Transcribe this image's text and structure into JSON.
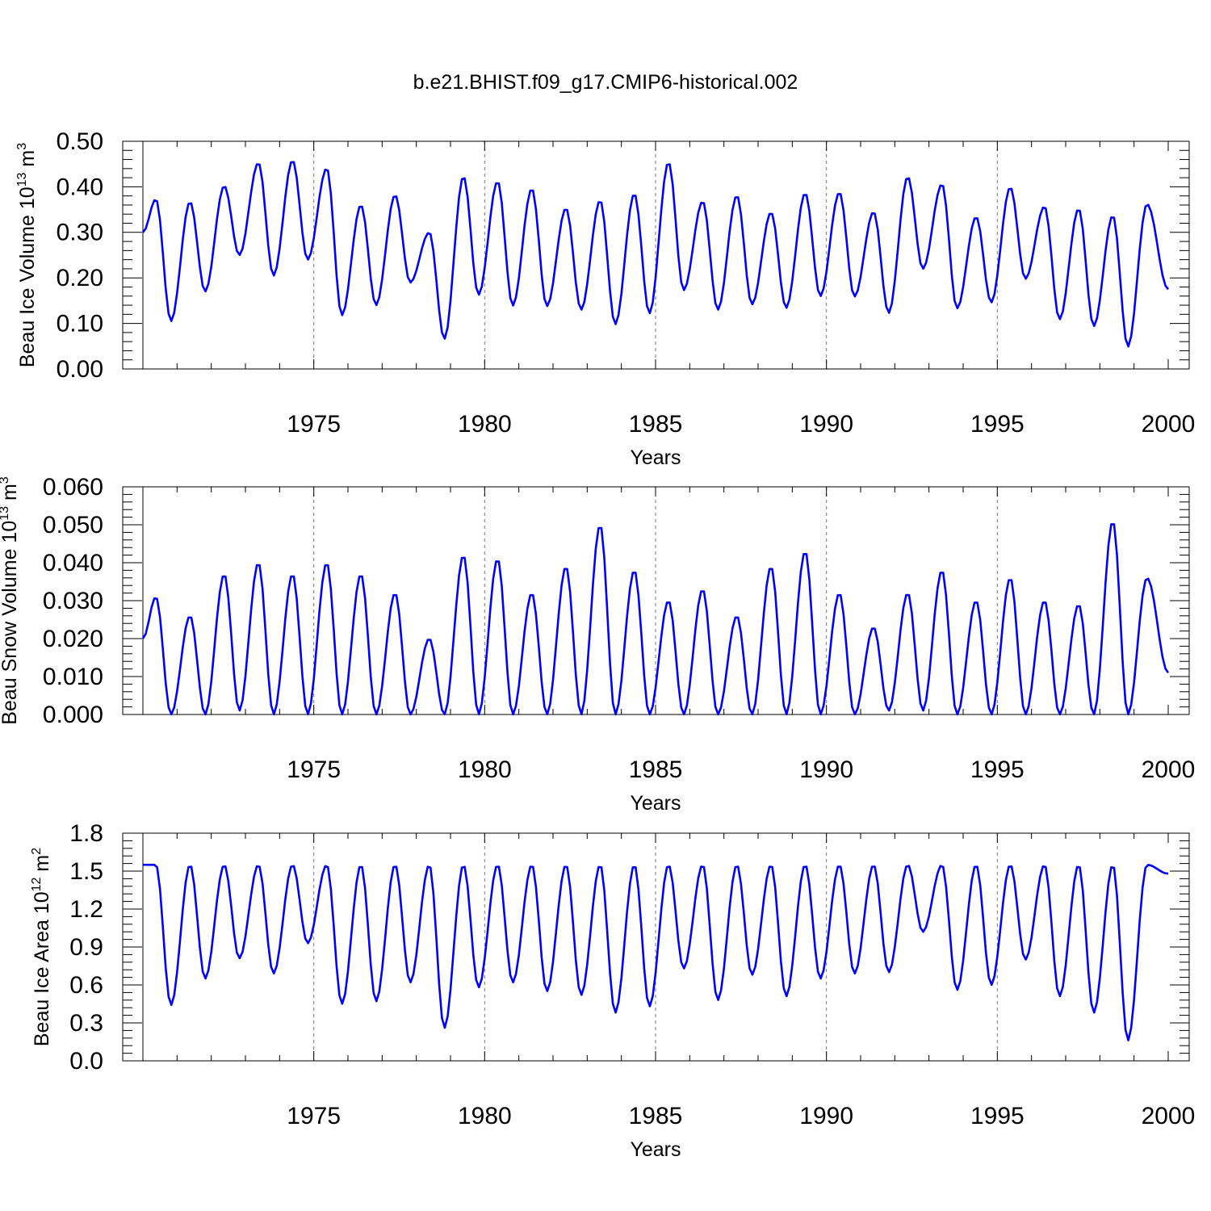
{
  "title": "b.e21.BHIST.f09_g17.CMIP6-historical.002",
  "colors": {
    "series": "#0000ff",
    "axes": "#000000",
    "grid": "#777777"
  },
  "chart_data": [
    {
      "type": "line",
      "ylabel_main": "Beau Ice Volume 10",
      "ylabel_exp": "13",
      "ylabel_unit": " m",
      "ylabel_unit_exp": "3",
      "xlabel": "Years",
      "xlim": [
        1970.0,
        2000.0
      ],
      "ylim": [
        0.0,
        0.5
      ],
      "xticks": [
        "1975",
        "1980",
        "1985",
        "1990",
        "1995",
        "2000"
      ],
      "yticks": [
        "0.00",
        "0.10",
        "0.20",
        "0.30",
        "0.40",
        "0.50"
      ],
      "grid": "dashed vertical lines at 5-year ticks",
      "series": [
        {
          "peaks": [
            0.373,
            0.367,
            0.402,
            0.453,
            0.458,
            0.441,
            0.36,
            0.382,
            0.3,
            0.423,
            0.412,
            0.396,
            0.353,
            0.37,
            0.385,
            0.454,
            0.368,
            0.381,
            0.344,
            0.386,
            0.388,
            0.345,
            0.422,
            0.406,
            0.334,
            0.399,
            0.357,
            0.352,
            0.337,
            0.362
          ],
          "troughs": [
            0.3,
            0.105,
            0.17,
            0.25,
            0.205,
            0.24,
            0.118,
            0.14,
            0.19,
            0.066,
            0.163,
            0.139,
            0.138,
            0.13,
            0.098,
            0.122,
            0.173,
            0.13,
            0.142,
            0.134,
            0.16,
            0.159,
            0.123,
            0.22,
            0.133,
            0.146,
            0.198,
            0.109,
            0.094,
            0.049,
            0.175
          ]
        }
      ]
    },
    {
      "type": "line",
      "ylabel_main": "Beau Snow Volume 10",
      "ylabel_exp": "13",
      "ylabel_unit": " m",
      "ylabel_unit_exp": "3",
      "xlabel": "Years",
      "xlim": [
        1970.0,
        2000.0
      ],
      "ylim": [
        0.0,
        0.06
      ],
      "xticks": [
        "1975",
        "1980",
        "1985",
        "1990",
        "1995",
        "2000"
      ],
      "yticks": [
        "0.000",
        "0.010",
        "0.020",
        "0.030",
        "0.040",
        "0.050",
        "0.060"
      ],
      "grid": "dashed vertical lines at 5-year ticks",
      "series": [
        {
          "peaks": [
            0.031,
            0.026,
            0.037,
            0.04,
            0.037,
            0.04,
            0.037,
            0.032,
            0.02,
            0.042,
            0.041,
            0.032,
            0.039,
            0.05,
            0.038,
            0.03,
            0.033,
            0.026,
            0.039,
            0.043,
            0.032,
            0.023,
            0.032,
            0.038,
            0.03,
            0.036,
            0.03,
            0.029,
            0.051,
            0.036
          ],
          "troughs": [
            0.02,
            0.0,
            0.0,
            0.001,
            0.0,
            0.0,
            0.0,
            0.0,
            0.0,
            0.0,
            0.0,
            0.0,
            0.0,
            0.0,
            0.0,
            0.0,
            0.0,
            0.0,
            0.0,
            0.0,
            0.0,
            0.0,
            0.001,
            0.001,
            0.0,
            0.0,
            0.0,
            0.0,
            0.0,
            0.0,
            0.011
          ]
        }
      ]
    },
    {
      "type": "line",
      "ylabel_main": "Beau Ice Area 10",
      "ylabel_exp": "12",
      "ylabel_unit": " m",
      "ylabel_unit_exp": "2",
      "xlabel": "Years",
      "xlim": [
        1970.0,
        2000.0
      ],
      "ylim": [
        0.0,
        1.8
      ],
      "xticks": [
        "1975",
        "1980",
        "1985",
        "1990",
        "1995",
        "2000"
      ],
      "yticks": [
        "0.0",
        "0.3",
        "0.6",
        "0.9",
        "1.2",
        "1.5",
        "1.8"
      ],
      "grid": "dashed vertical lines at 5-year ticks",
      "series": [
        {
          "peaks": [
            1.55,
            1.55,
            1.55,
            1.55,
            1.55,
            1.55,
            1.55,
            1.55,
            1.55,
            1.55,
            1.55,
            1.55,
            1.55,
            1.55,
            1.55,
            1.55,
            1.55,
            1.55,
            1.55,
            1.55,
            1.55,
            1.55,
            1.55,
            1.55,
            1.55,
            1.55,
            1.55,
            1.55,
            1.55,
            1.55
          ],
          "troughs": [
            1.55,
            0.44,
            0.65,
            0.81,
            0.69,
            0.93,
            0.45,
            0.47,
            0.62,
            0.26,
            0.58,
            0.62,
            0.55,
            0.52,
            0.38,
            0.43,
            0.73,
            0.48,
            0.68,
            0.51,
            0.65,
            0.69,
            0.7,
            1.02,
            0.56,
            0.6,
            0.8,
            0.51,
            0.38,
            0.16,
            1.48
          ]
        }
      ]
    }
  ]
}
